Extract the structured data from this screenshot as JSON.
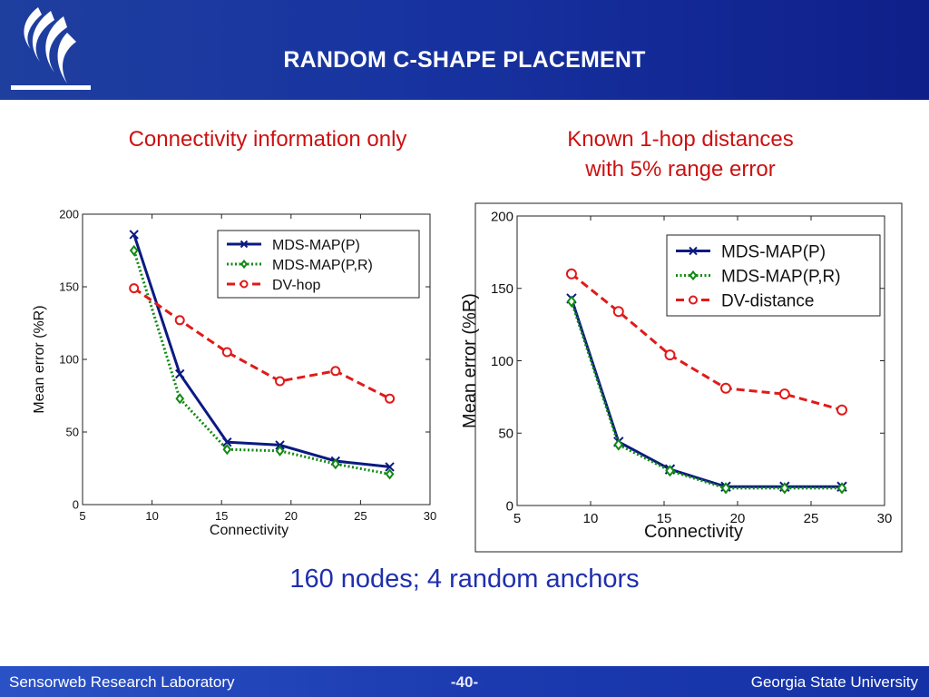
{
  "slide": {
    "title": "RANDOM C-SHAPE PLACEMENT",
    "left_heading": "Connectivity information only",
    "right_heading_line1": "Known 1-hop distances",
    "right_heading_line2": "with 5% range error",
    "caption": "160 nodes; 4 random anchors",
    "footer_left": "Sensorweb Research Laboratory",
    "footer_center": "-40-",
    "footer_right": "Georgia State University",
    "colors": {
      "header_blue": "#1733a0",
      "heading_red": "#cc1111",
      "caption_blue": "#1f2fae"
    }
  },
  "chart_data": [
    {
      "type": "line",
      "xlabel": "Connectivity",
      "ylabel": "Mean error (%R)",
      "xlim": [
        5,
        30
      ],
      "ylim": [
        0,
        200
      ],
      "xticks": [
        5,
        10,
        15,
        20,
        25,
        30
      ],
      "yticks": [
        0,
        50,
        100,
        150,
        200
      ],
      "legend_position": "top-right",
      "series": [
        {
          "name": "MDS-MAP(P)",
          "color": "#0a1a80",
          "style": "solid",
          "marker": "x",
          "x": [
            8.7,
            12.0,
            15.4,
            19.2,
            23.2,
            27.1
          ],
          "values": [
            186,
            90,
            43,
            41,
            30,
            26
          ]
        },
        {
          "name": "MDS-MAP(P,R)",
          "color": "#108a10",
          "style": "dotted",
          "marker": "diamond",
          "x": [
            8.7,
            12.0,
            15.4,
            19.2,
            23.2,
            27.1
          ],
          "values": [
            175,
            73,
            38,
            37,
            28,
            21
          ]
        },
        {
          "name": "DV-hop",
          "color": "#e01a1a",
          "style": "dashed",
          "marker": "circle",
          "x": [
            8.7,
            12.0,
            15.4,
            19.2,
            23.2,
            27.1
          ],
          "values": [
            149,
            127,
            105,
            85,
            92,
            73
          ]
        }
      ]
    },
    {
      "type": "line",
      "xlabel": "Connectivity",
      "ylabel": "Mean error (%R)",
      "xlim": [
        5,
        30
      ],
      "ylim": [
        0,
        200
      ],
      "xticks": [
        5,
        10,
        15,
        20,
        25,
        30
      ],
      "yticks": [
        0,
        50,
        100,
        150,
        200
      ],
      "legend_position": "top-right",
      "series": [
        {
          "name": "MDS-MAP(P)",
          "color": "#0a1a80",
          "style": "solid",
          "marker": "x",
          "x": [
            8.7,
            11.9,
            15.4,
            19.2,
            23.2,
            27.1
          ],
          "values": [
            143,
            44,
            25,
            13,
            13,
            13
          ]
        },
        {
          "name": "MDS-MAP(P,R)",
          "color": "#108a10",
          "style": "dotted",
          "marker": "diamond",
          "x": [
            8.7,
            11.9,
            15.4,
            19.2,
            23.2,
            27.1
          ],
          "values": [
            141,
            42,
            24,
            12,
            12,
            12
          ]
        },
        {
          "name": "DV-distance",
          "color": "#e01a1a",
          "style": "dashed",
          "marker": "circle",
          "x": [
            8.7,
            11.9,
            15.4,
            19.2,
            23.2,
            27.1
          ],
          "values": [
            160,
            134,
            104,
            81,
            77,
            66
          ]
        }
      ]
    }
  ]
}
